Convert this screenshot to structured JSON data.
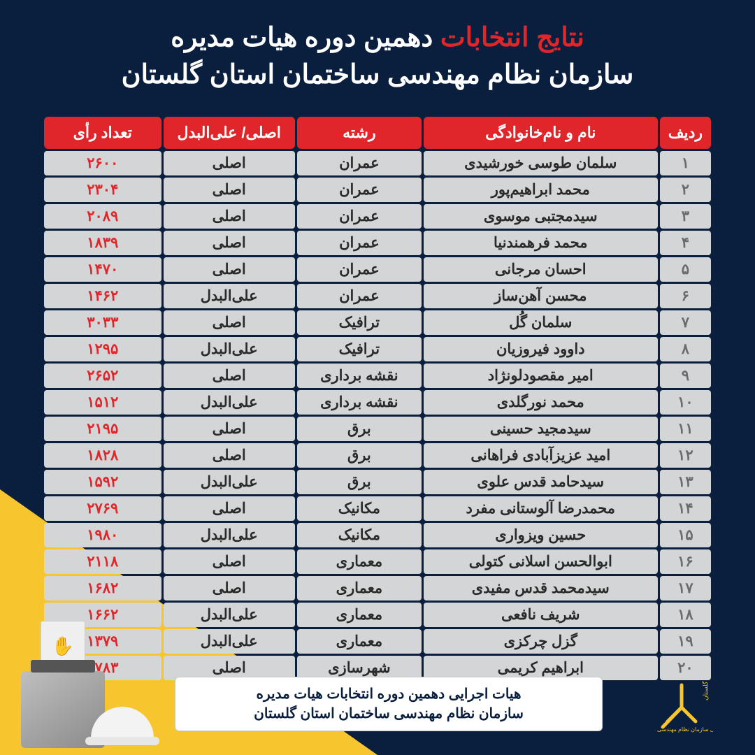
{
  "colors": {
    "background": "#0a1e3d",
    "accent_yellow": "#f7c52d",
    "header_red": "#e0262a",
    "cell_bg": "#d3d5d6",
    "cell_text": "#2a2a2a",
    "rank_text": "#6b6b6b",
    "white": "#ffffff"
  },
  "title": {
    "prefix": "نتایج انتخابات",
    "rest1": " دهمین دوره هیات مدیره",
    "line2": "سازمان نظام مهندسی ساختمان استان گلستان"
  },
  "table": {
    "headers": {
      "rank": "ردیف",
      "name": "نام و نام‌خانوادگی",
      "field": "رشته",
      "status": "اصلی/ علی‌البدل",
      "votes": "تعداد رأی"
    },
    "rows": [
      {
        "rank": "۱",
        "name": "سلمان طوسی خورشیدی",
        "field": "عمران",
        "status": "اصلی",
        "votes": "۲۶۰۰"
      },
      {
        "rank": "۲",
        "name": "محمد ابراهیم‌پور",
        "field": "عمران",
        "status": "اصلی",
        "votes": "۲۳۰۴"
      },
      {
        "rank": "۳",
        "name": "سیدمجتبی موسوی",
        "field": "عمران",
        "status": "اصلی",
        "votes": "۲۰۸۹"
      },
      {
        "rank": "۴",
        "name": "محمد فرهمندنیا",
        "field": "عمران",
        "status": "اصلی",
        "votes": "۱۸۳۹"
      },
      {
        "rank": "۵",
        "name": "احسان مرجانی",
        "field": "عمران",
        "status": "اصلی",
        "votes": "۱۴۷۰"
      },
      {
        "rank": "۶",
        "name": "محسن آهن‌ساز",
        "field": "عمران",
        "status": "علی‌البدل",
        "votes": "۱۴۶۲"
      },
      {
        "rank": "۷",
        "name": "سلمان گُل",
        "field": "ترافیک",
        "status": "اصلی",
        "votes": "۳۰۳۳"
      },
      {
        "rank": "۸",
        "name": "داوود فیروزیان",
        "field": "ترافیک",
        "status": "علی‌البدل",
        "votes": "۱۲۹۵"
      },
      {
        "rank": "۹",
        "name": "امیر مقصودلونژاد",
        "field": "نقشه برداری",
        "status": "اصلی",
        "votes": "۲۶۵۲"
      },
      {
        "rank": "۱۰",
        "name": "محمد نورگلدی",
        "field": "نقشه برداری",
        "status": "علی‌البدل",
        "votes": "۱۵۱۲"
      },
      {
        "rank": "۱۱",
        "name": "سیدمجید حسینی",
        "field": "برق",
        "status": "اصلی",
        "votes": "۲۱۹۵"
      },
      {
        "rank": "۱۲",
        "name": "امید عزیزآبادی فراهانی",
        "field": "برق",
        "status": "اصلی",
        "votes": "۱۸۲۸"
      },
      {
        "rank": "۱۳",
        "name": "سیدحامد قدس علوی",
        "field": "برق",
        "status": "علی‌البدل",
        "votes": "۱۵۹۲"
      },
      {
        "rank": "۱۴",
        "name": "محمدرضا آلوستانی مفرد",
        "field": "مکانیک",
        "status": "اصلی",
        "votes": "۲۷۶۹"
      },
      {
        "rank": "۱۵",
        "name": "حسین ویزواری",
        "field": "مکانیک",
        "status": "علی‌البدل",
        "votes": "۱۹۸۰"
      },
      {
        "rank": "۱۶",
        "name": "ابوالحسن اسلانی کتولی",
        "field": "معماری",
        "status": "اصلی",
        "votes": "۲۱۱۸"
      },
      {
        "rank": "۱۷",
        "name": "سیدمحمد قدس مفیدی",
        "field": "معماری",
        "status": "اصلی",
        "votes": "۱۶۸۲"
      },
      {
        "rank": "۱۸",
        "name": "شریف نافعی",
        "field": "معماری",
        "status": "علی‌البدل",
        "votes": "۱۶۶۲"
      },
      {
        "rank": "۱۹",
        "name": "گزل چرکزی",
        "field": "معماری",
        "status": "علی‌البدل",
        "votes": "۱۳۷۹"
      },
      {
        "rank": "۲۰",
        "name": "ابراهیم کریمی",
        "field": "شهرسازی",
        "status": "اصلی",
        "votes": "۲۷۸۳"
      }
    ]
  },
  "footer": {
    "line1": "هیات اجرایی دهمین دوره انتخابات هیات مدیره",
    "line2": "سازمان نظام مهندسی ساختمان استان گلستان",
    "logo_text": "روابط عمومی سازمان نظام مهندسی ساختمان گلستان"
  }
}
